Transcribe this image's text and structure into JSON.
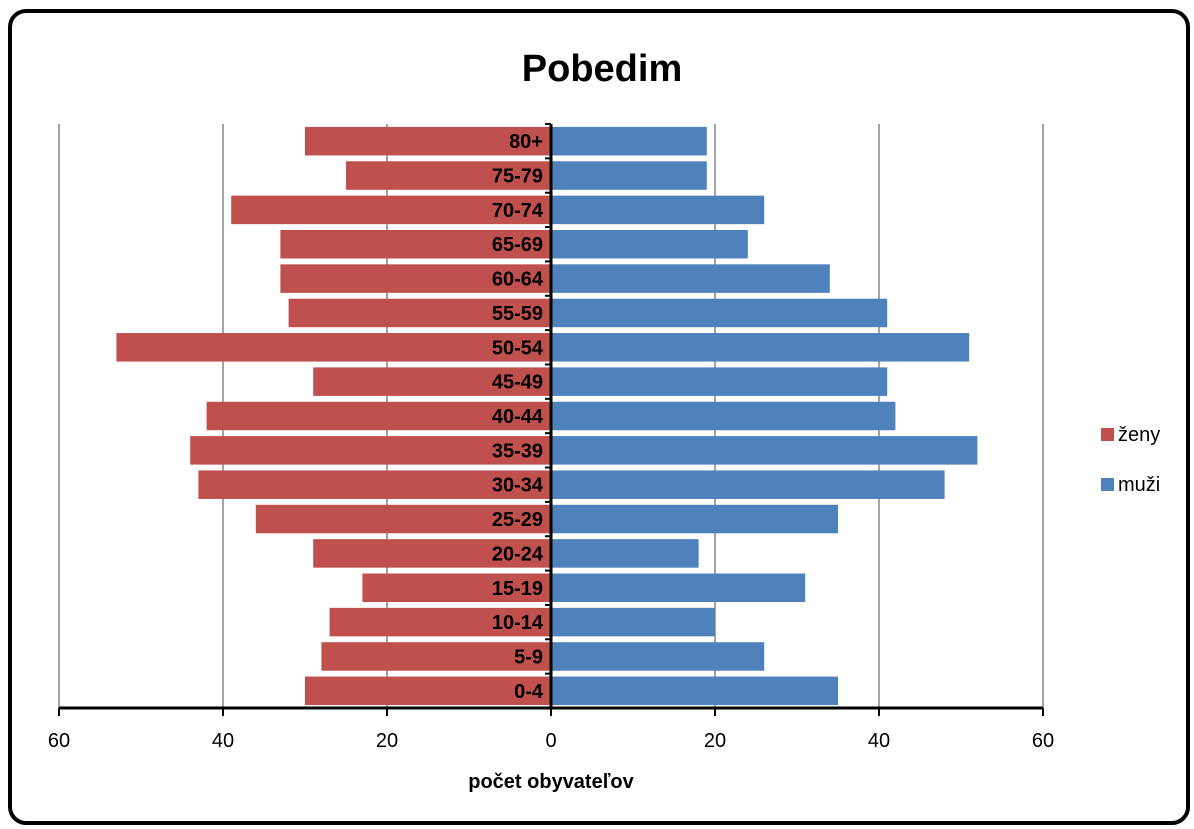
{
  "chart_data": {
    "type": "bar",
    "orientation": "horizontal",
    "layout": "population-pyramid",
    "title": "Pobedim",
    "xlabel": "počet obyvateľov",
    "ylabel": "",
    "xlim": [
      -60,
      60
    ],
    "x_ticks": [
      -60,
      -40,
      -20,
      0,
      20,
      40,
      60
    ],
    "x_tick_labels": [
      "60",
      "40",
      "20",
      "0",
      "20",
      "40",
      "60"
    ],
    "grid": "vertical",
    "legend_position": "right",
    "categories": [
      "0-4",
      "5-9",
      "10-14",
      "15-19",
      "20-24",
      "25-29",
      "30-34",
      "35-39",
      "40-44",
      "45-49",
      "50-54",
      "55-59",
      "60-64",
      "65-69",
      "70-74",
      "75-79",
      "80+"
    ],
    "series": [
      {
        "name": "ženy",
        "color": "#C0504D",
        "side": "left",
        "values": [
          30,
          28,
          27,
          23,
          29,
          36,
          43,
          44,
          42,
          29,
          53,
          32,
          33,
          33,
          39,
          25,
          30
        ]
      },
      {
        "name": "muži",
        "color": "#4F81BD",
        "side": "right",
        "values": [
          35,
          26,
          20,
          31,
          18,
          35,
          48,
          52,
          42,
          41,
          51,
          41,
          34,
          24,
          26,
          19,
          19
        ]
      }
    ]
  }
}
